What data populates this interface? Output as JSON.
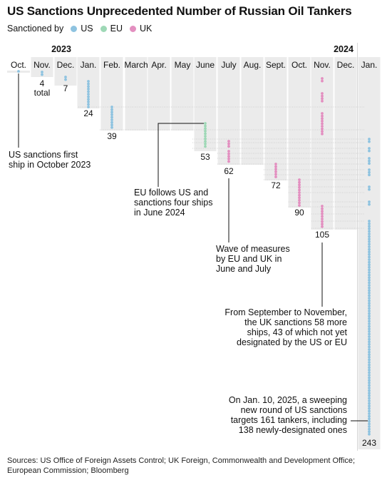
{
  "title": "US Sanctions Unprecedented Number of Russian Oil Tankers",
  "legend": {
    "label": "Sanctioned by",
    "items": [
      {
        "name": "US",
        "color": "#8ec3e0"
      },
      {
        "name": "EU",
        "color": "#9ed8b6"
      },
      {
        "name": "UK",
        "color": "#e38fc0"
      }
    ]
  },
  "colors": {
    "US": "#8ec3e0",
    "EU": "#9ed8b6",
    "UK": "#e38fc0",
    "band": "#ebebeb",
    "guide": "#c9c9c9"
  },
  "chart_data": {
    "type": "timeline",
    "years": [
      "2023",
      "2024"
    ],
    "months": [
      "Oct.",
      "Nov.",
      "Dec.",
      "Jan.",
      "Feb.",
      "March",
      "Apr.",
      "May",
      "June",
      "July",
      "Aug.",
      "Sept.",
      "Oct.",
      "Nov.",
      "Dec.",
      "Jan."
    ],
    "cumulative_totals": [
      {
        "month_index": 0,
        "total": 1,
        "label": ""
      },
      {
        "month_index": 1,
        "total": 4,
        "label": "4\ntotal"
      },
      {
        "month_index": 2,
        "total": 7,
        "label": "7"
      },
      {
        "month_index": 3,
        "total": 24,
        "label": "24"
      },
      {
        "month_index": 4,
        "total": 39,
        "label": "39"
      },
      {
        "month_index": 8,
        "total": 53,
        "label": "53"
      },
      {
        "month_index": 9,
        "total": 62,
        "label": "62"
      },
      {
        "month_index": 11,
        "total": 72,
        "label": "72"
      },
      {
        "month_index": 12,
        "total": 90,
        "label": "90"
      },
      {
        "month_index": 13,
        "total": 105,
        "label": "105"
      },
      {
        "month_index": 15,
        "total": 243,
        "label": "243"
      }
    ],
    "annotations": [
      {
        "id": "oct-2023",
        "text": "US sanctions first\nship in October 2023"
      },
      {
        "id": "june-2024",
        "text": "EU follows US and\nsanctions four ships\nin June 2024"
      },
      {
        "id": "june-july",
        "text": "Wave of measures\nby EU and UK in\nJune and July"
      },
      {
        "id": "sept-nov",
        "text": "From September to November,\nthe UK sanctions 58 more\nships, 43 of which not yet\ndesignated by the US or EU"
      },
      {
        "id": "jan-2025",
        "text": "On Jan. 10, 2025, a sweeping\nnew round of US sanctions\ntargets 161 tankers, including\n138 newly-designated ones"
      }
    ]
  },
  "sources": "Sources: US Office of Foreign Assets Control; UK Foreign, Commonwealth and Development Office; European Commission; Bloomberg"
}
